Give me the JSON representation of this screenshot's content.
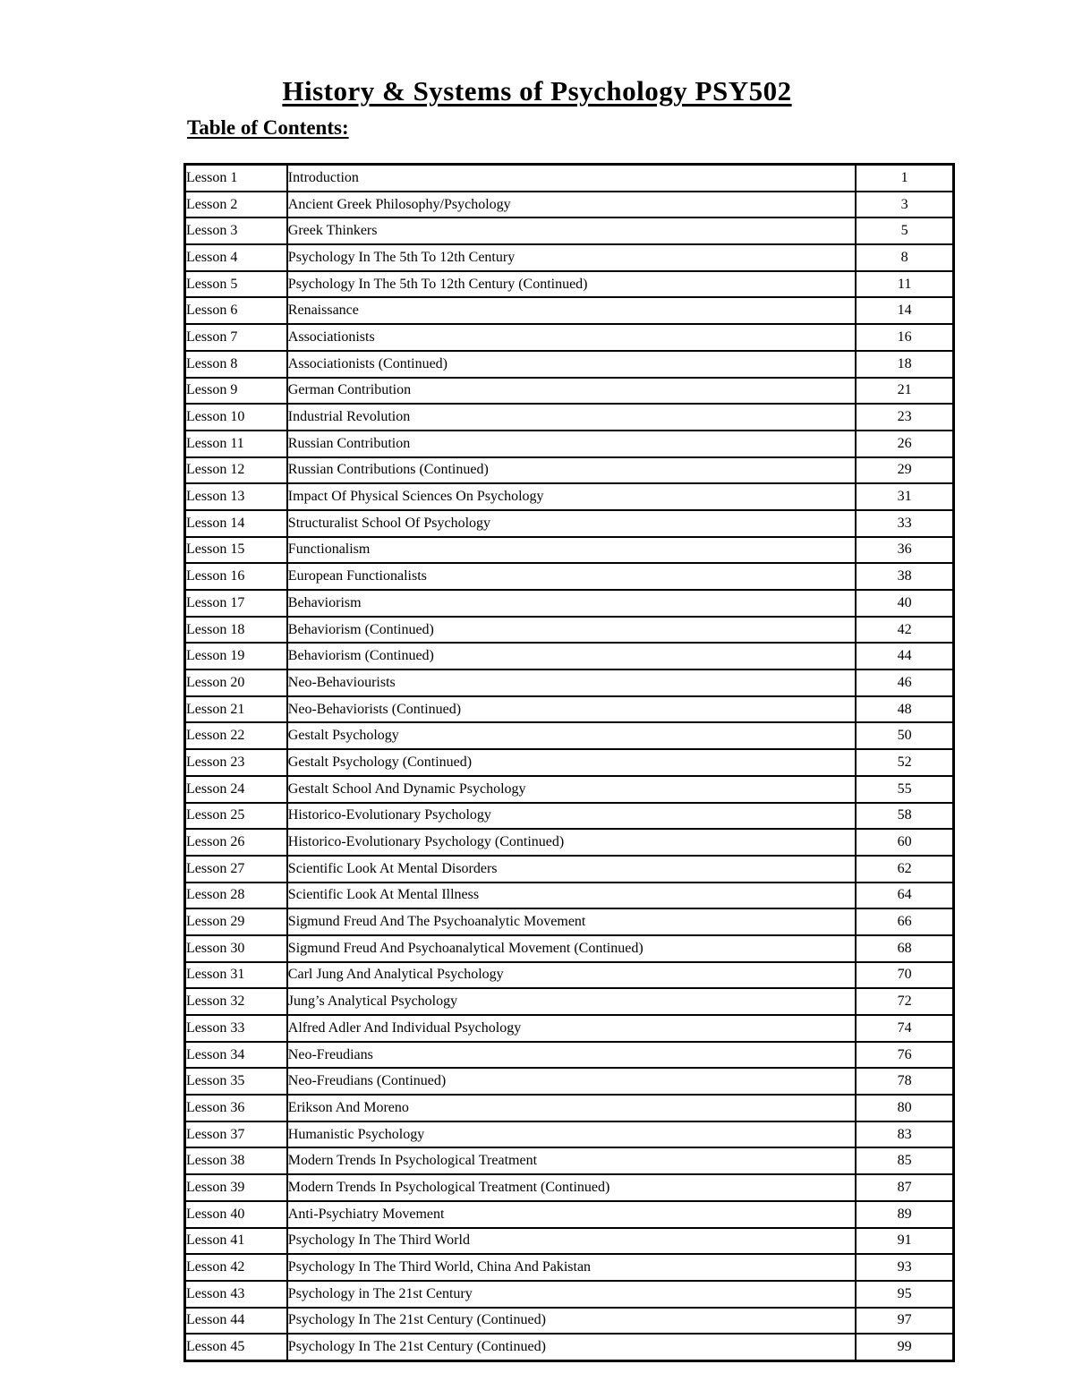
{
  "header": {
    "title": "History & Systems of Psychology PSY502",
    "subtitle": "Table of Contents:"
  },
  "table": {
    "columns": [
      "lesson",
      "title",
      "page"
    ],
    "rows": [
      {
        "lesson": "Lesson 1",
        "title": "Introduction",
        "page": "1"
      },
      {
        "lesson": "Lesson 2",
        "title": "Ancient Greek Philosophy/Psychology",
        "page": "3"
      },
      {
        "lesson": "Lesson 3",
        "title": "Greek Thinkers",
        "page": "5"
      },
      {
        "lesson": "Lesson 4",
        "title": "Psychology In The 5th To 12th Century",
        "page": "8"
      },
      {
        "lesson": "Lesson 5",
        "title": "Psychology In The 5th To 12th Century (Continued)",
        "page": "11"
      },
      {
        "lesson": "Lesson 6",
        "title": "Renaissance",
        "page": "14"
      },
      {
        "lesson": "Lesson 7",
        "title": "Associationists",
        "page": "16"
      },
      {
        "lesson": "Lesson 8",
        "title": "Associationists (Continued)",
        "page": "18"
      },
      {
        "lesson": "Lesson 9",
        "title": "German Contribution",
        "page": "21"
      },
      {
        "lesson": "Lesson 10",
        "title": "Industrial Revolution",
        "page": "23"
      },
      {
        "lesson": "Lesson 11",
        "title": "Russian Contribution",
        "page": "26"
      },
      {
        "lesson": "Lesson 12",
        "title": "Russian Contributions (Continued)",
        "page": "29"
      },
      {
        "lesson": "Lesson 13",
        "title": "Impact Of Physical Sciences On Psychology",
        "page": "31"
      },
      {
        "lesson": "Lesson 14",
        "title": "Structuralist School Of Psychology",
        "page": "33"
      },
      {
        "lesson": "Lesson 15",
        "title": "Functionalism",
        "page": "36"
      },
      {
        "lesson": "Lesson 16",
        "title": "European Functionalists",
        "page": "38"
      },
      {
        "lesson": "Lesson 17",
        "title": "Behaviorism",
        "page": "40"
      },
      {
        "lesson": "Lesson 18",
        "title": "Behaviorism (Continued)",
        "page": "42"
      },
      {
        "lesson": "Lesson 19",
        "title": "Behaviorism (Continued)",
        "page": "44"
      },
      {
        "lesson": "Lesson 20",
        "title": "Neo-Behaviourists",
        "page": "46"
      },
      {
        "lesson": "Lesson 21",
        "title": "Neo-Behaviorists (Continued)",
        "page": "48"
      },
      {
        "lesson": "Lesson 22",
        "title": "Gestalt Psychology",
        "page": "50"
      },
      {
        "lesson": "Lesson 23",
        "title": "Gestalt Psychology (Continued)",
        "page": "52"
      },
      {
        "lesson": "Lesson 24",
        "title": "Gestalt School And Dynamic Psychology",
        "page": "55"
      },
      {
        "lesson": "Lesson 25",
        "title": "Historico-Evolutionary Psychology",
        "page": "58"
      },
      {
        "lesson": "Lesson 26",
        "title": "Historico-Evolutionary Psychology (Continued)",
        "page": "60"
      },
      {
        "lesson": "Lesson 27",
        "title": "Scientific Look At Mental Disorders",
        "page": "62"
      },
      {
        "lesson": "Lesson 28",
        "title": "Scientific Look At Mental Illness",
        "page": "64"
      },
      {
        "lesson": "Lesson 29",
        "title": "Sigmund Freud And The Psychoanalytic Movement",
        "page": "66"
      },
      {
        "lesson": "Lesson 30",
        "title": "Sigmund Freud And Psychoanalytical Movement (Continued)",
        "page": "68"
      },
      {
        "lesson": "Lesson 31",
        "title": "Carl Jung And Analytical Psychology",
        "page": "70"
      },
      {
        "lesson": "Lesson 32",
        "title": "Jung’s Analytical Psychology",
        "page": "72"
      },
      {
        "lesson": "Lesson 33",
        "title": "Alfred Adler And Individual Psychology",
        "page": "74"
      },
      {
        "lesson": "Lesson 34",
        "title": "Neo-Freudians",
        "page": "76"
      },
      {
        "lesson": "Lesson 35",
        "title": "Neo-Freudians (Continued)",
        "page": "78"
      },
      {
        "lesson": "Lesson 36",
        "title": "Erikson And Moreno",
        "page": "80"
      },
      {
        "lesson": "Lesson 37",
        "title": "Humanistic Psychology",
        "page": "83"
      },
      {
        "lesson": "Lesson 38",
        "title": "Modern Trends In Psychological Treatment",
        "page": "85"
      },
      {
        "lesson": "Lesson 39",
        "title": "Modern Trends In Psychological Treatment (Continued)",
        "page": "87"
      },
      {
        "lesson": "Lesson 40",
        "title": "Anti-Psychiatry Movement",
        "page": "89"
      },
      {
        "lesson": "Lesson 41",
        "title": "Psychology In The Third World",
        "page": "91"
      },
      {
        "lesson": "Lesson 42",
        "title": "Psychology In The Third World, China And Pakistan",
        "page": "93"
      },
      {
        "lesson": "Lesson 43",
        "title": "Psychology in The 21st Century",
        "page": "95"
      },
      {
        "lesson": "Lesson 44",
        "title": "Psychology In The 21st Century (Continued)",
        "page": "97"
      },
      {
        "lesson": "Lesson 45",
        "title": "Psychology In The 21st Century (Continued)",
        "page": "99"
      }
    ]
  }
}
